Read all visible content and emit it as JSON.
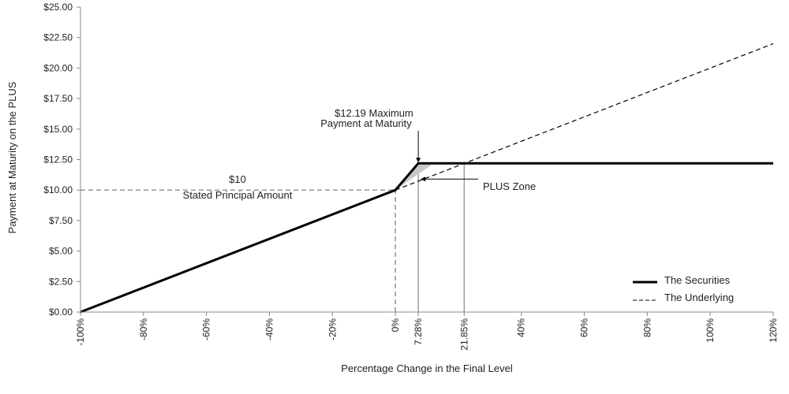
{
  "chart_data": {
    "type": "line",
    "title": "",
    "xlabel": "Percentage Change in the Final Level",
    "ylabel": "Payment at Maturity on the PLUS",
    "xlim": [
      -100,
      120
    ],
    "ylim": [
      0,
      25
    ],
    "grid": false,
    "legend_position": "bottom-right",
    "y_ticks": [
      {
        "value": 0,
        "label": "$0.00"
      },
      {
        "value": 2.5,
        "label": "$2.50"
      },
      {
        "value": 5,
        "label": "$5.00"
      },
      {
        "value": 7.5,
        "label": "$7.50"
      },
      {
        "value": 10,
        "label": "$10.00"
      },
      {
        "value": 12.5,
        "label": "$12.50"
      },
      {
        "value": 15,
        "label": "$15.00"
      },
      {
        "value": 17.5,
        "label": "$17.50"
      },
      {
        "value": 20,
        "label": "$20.00"
      },
      {
        "value": 22.5,
        "label": "$22.50"
      },
      {
        "value": 25,
        "label": "$25.00"
      }
    ],
    "x_ticks": [
      {
        "value": -100,
        "label": "-100%"
      },
      {
        "value": -80,
        "label": "-80%"
      },
      {
        "value": -60,
        "label": "-60%"
      },
      {
        "value": -40,
        "label": "-40%"
      },
      {
        "value": -20,
        "label": "-20%"
      },
      {
        "value": 0,
        "label": "0%"
      },
      {
        "value": 7.28,
        "label": "7.28%"
      },
      {
        "value": 21.85,
        "label": "21.85%"
      },
      {
        "value": 40,
        "label": "40%"
      },
      {
        "value": 60,
        "label": "60%"
      },
      {
        "value": 80,
        "label": "80%"
      },
      {
        "value": 100,
        "label": "100%"
      },
      {
        "value": 120,
        "label": "120%"
      }
    ],
    "series": [
      {
        "name": "The Securities",
        "style": "solid",
        "color": "#000000",
        "points": [
          [
            -100,
            0
          ],
          [
            0,
            10
          ],
          [
            7.28,
            12.19
          ],
          [
            120,
            12.19
          ]
        ]
      },
      {
        "name": "The Underlying",
        "style": "dashed",
        "color": "#000000",
        "points": [
          [
            0,
            10
          ],
          [
            120,
            22
          ]
        ]
      }
    ],
    "shaded_region": {
      "label": "PLUS Zone",
      "color": "#c8c8c8",
      "points": [
        [
          0,
          10
        ],
        [
          7.28,
          12.19
        ],
        [
          12.19,
          12.19
        ]
      ]
    },
    "reference_lines": [
      {
        "type": "horizontal",
        "y": 10,
        "from_x": -100,
        "to_x": 0,
        "style": "dashed"
      },
      {
        "type": "vertical",
        "x": 0,
        "from_y": 0,
        "to_y": 10,
        "style": "dashed"
      },
      {
        "type": "vertical",
        "x": 7.28,
        "from_y": 0,
        "to_y": 12.19,
        "style": "solid-thin"
      },
      {
        "type": "vertical",
        "x": 21.85,
        "from_y": 0,
        "to_y": 12.19,
        "style": "solid-thin"
      }
    ],
    "annotations": {
      "max_payment": {
        "line1": "$12.19 Maximum",
        "line2": "Payment at Maturity",
        "x": 7.28,
        "y": 12.19
      },
      "principal": {
        "line1": "$10",
        "line2": "Stated Principal Amount"
      },
      "plus_zone": {
        "text": "PLUS Zone",
        "x": 7.28,
        "y": 10.9
      }
    }
  },
  "colors": {
    "line": "#000000",
    "reference": "#888888",
    "shade": "#c8c8c8"
  }
}
